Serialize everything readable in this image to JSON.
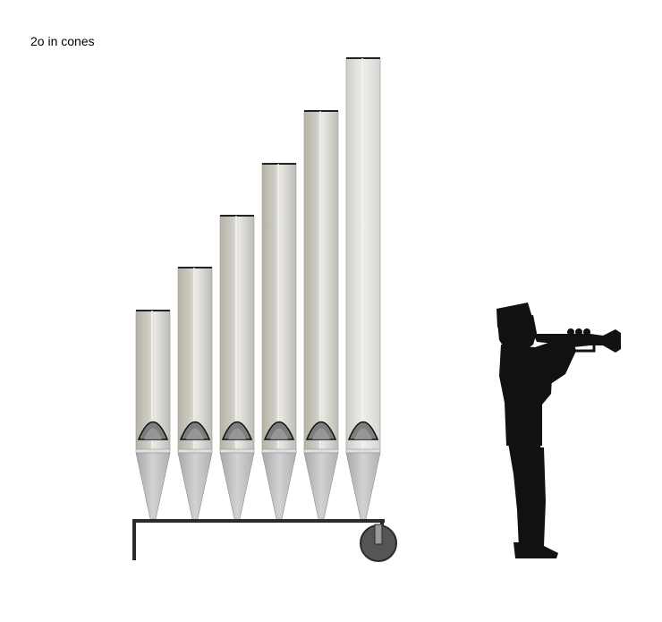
{
  "caption": "2o in cones",
  "pipe_count": 6,
  "colors": {
    "pipe_body_dark": "#a9a59a",
    "pipe_body_light": "#e4e3df",
    "pipe_cone": "#bdbdbd",
    "mouth_fill": "#7d7d7d",
    "frame": "#2b2b2b",
    "wheel": "#555555",
    "figure": "#111111"
  },
  "figure": {
    "description_icon": "trumpet-player-silhouette-icon"
  }
}
